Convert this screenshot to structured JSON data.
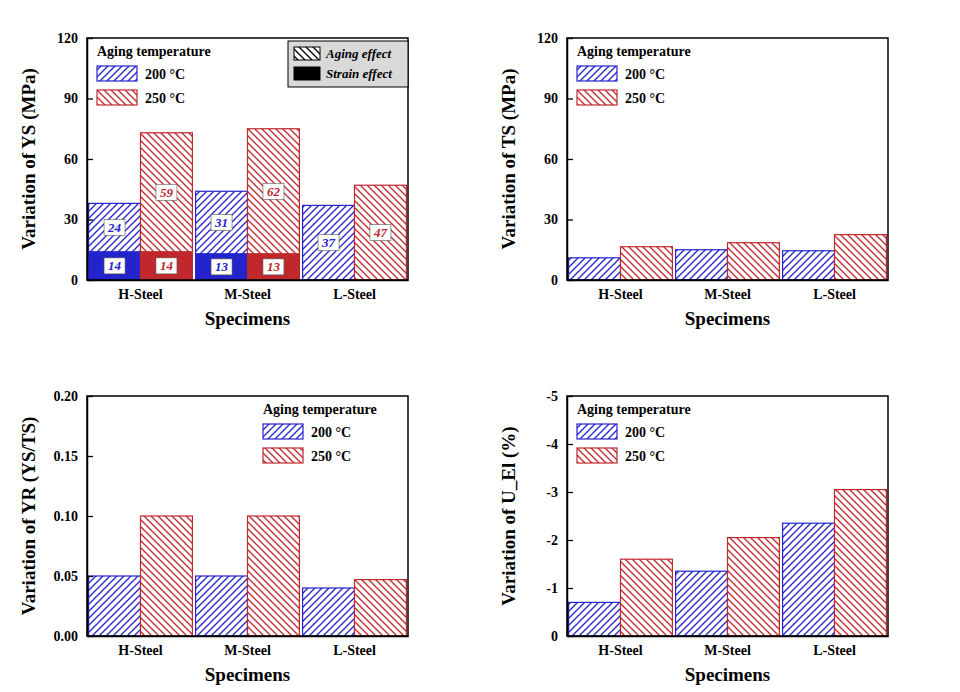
{
  "chart_data": [
    {
      "type": "bar",
      "stacked": true,
      "data_labels": true,
      "legend": "upper left",
      "y_label": "Variation of YS (MPa)",
      "x_label": "Specimens",
      "legend_title": "Aging temperature",
      "categories": [
        "H-Steel",
        "M-Steel",
        "L-Steel"
      ],
      "effects": [
        {
          "name": "Aging effect",
          "line_style": "hatched"
        },
        {
          "name": "Strain effect",
          "line_style": "solid"
        }
      ],
      "series": [
        {
          "name": "200 °C",
          "color": "#2424cc",
          "values": [
            [
              24,
              14
            ],
            [
              31,
              13
            ],
            [
              37,
              null
            ]
          ]
        },
        {
          "name": "250 °C",
          "color": "#c0282d",
          "values": [
            [
              59,
              14
            ],
            [
              62,
              13
            ],
            [
              47,
              null
            ]
          ]
        }
      ],
      "ylim": [
        0,
        120
      ],
      "yticks": [
        0,
        30,
        60,
        90,
        120
      ]
    },
    {
      "type": "bar",
      "legend": "upper left",
      "y_label": "Variation of TS (MPa)",
      "x_label": "Specimens",
      "legend_title": "Aging temperature",
      "categories": [
        "H-Steel",
        "M-Steel",
        "L-Steel"
      ],
      "series": [
        {
          "name": "200 °C",
          "color": "#2424cc",
          "values": [
            11,
            15,
            14.5
          ]
        },
        {
          "name": "250 °C",
          "color": "#c0282d",
          "values": [
            16.5,
            18.5,
            22.5
          ]
        }
      ],
      "ylim": [
        0,
        120
      ],
      "yticks": [
        0,
        30,
        60,
        90,
        120
      ]
    },
    {
      "type": "bar",
      "legend": "upper right",
      "y_label": "Variation of YR (YS/TS)",
      "x_label": "Specimens",
      "legend_title": "Aging temperature",
      "categories": [
        "H-Steel",
        "M-Steel",
        "L-Steel"
      ],
      "series": [
        {
          "name": "200 °C",
          "color": "#2424cc",
          "values": [
            0.05,
            0.05,
            0.04
          ]
        },
        {
          "name": "250 °C",
          "color": "#c0282d",
          "values": [
            0.1,
            0.1,
            0.047
          ]
        }
      ],
      "ylim": [
        0,
        0.2
      ],
      "yticks": [
        {
          "value": 0,
          "label": "0.00"
        },
        {
          "value": 0.05,
          "label": "0.05"
        },
        {
          "value": 0.1,
          "label": "0.10"
        },
        {
          "value": 0.15,
          "label": "0.15"
        },
        {
          "value": 0.2,
          "label": "0.20"
        }
      ]
    },
    {
      "type": "bar",
      "legend": "upper left",
      "y_label": "Variation of U_El (%)",
      "x_label": "Specimens",
      "legend_title": "Aging temperature",
      "categories": [
        "H-Steel",
        "M-Steel",
        "L-Steel"
      ],
      "series": [
        {
          "name": "200 °C",
          "color": "#2424cc",
          "values": [
            -0.7,
            -1.35,
            -2.35
          ]
        },
        {
          "name": "250 °C",
          "color": "#c0282d",
          "values": [
            -1.6,
            -2.05,
            -3.05
          ]
        }
      ],
      "ylim": [
        0,
        -5
      ],
      "yticks": [
        0,
        -1,
        -2,
        -3,
        -4,
        -5
      ]
    }
  ]
}
